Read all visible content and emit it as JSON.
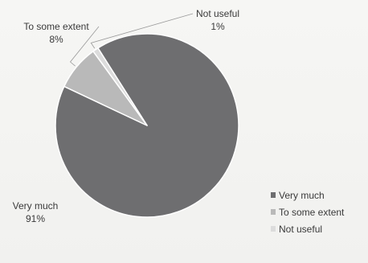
{
  "chart_data": {
    "type": "pie",
    "categories": [
      "Very much",
      "To some extent",
      "Not useful"
    ],
    "values": [
      91,
      8,
      1
    ],
    "value_labels": [
      "91%",
      "8%",
      "1%"
    ],
    "colors": [
      "#6e6e70",
      "#b9b9b9",
      "#dcdcdc"
    ],
    "legend_position": "bottom-right",
    "legend": {
      "entries": [
        "Very much",
        "To some extent",
        "Not useful"
      ]
    }
  }
}
